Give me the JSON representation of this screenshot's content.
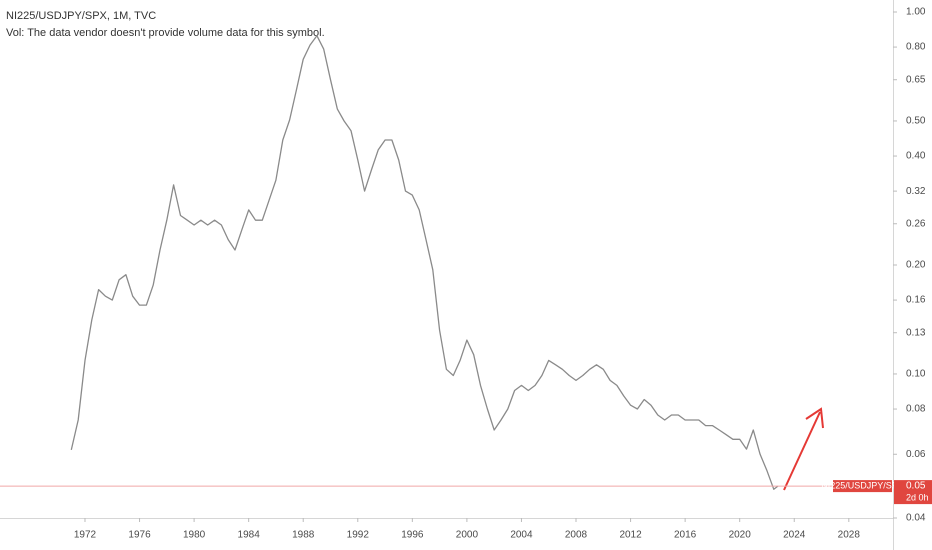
{
  "chart_data": {
    "type": "line",
    "title": "NI225/USDJPY/SPX, 1M, TVC",
    "subtitle": "Vol: The data vendor doesn't provide volume data for this symbol.",
    "log_scale": true,
    "grid": false,
    "x": [
      1971.0,
      1971.5,
      1972.0,
      1972.5,
      1973.0,
      1973.5,
      1974.0,
      1974.5,
      1975.0,
      1975.5,
      1976.0,
      1976.5,
      1977.0,
      1977.5,
      1978.0,
      1978.5,
      1979.0,
      1979.5,
      1980.0,
      1980.5,
      1981.0,
      1981.5,
      1982.0,
      1982.5,
      1983.0,
      1983.5,
      1984.0,
      1984.5,
      1985.0,
      1985.5,
      1986.0,
      1986.5,
      1987.0,
      1987.5,
      1988.0,
      1988.5,
      1989.0,
      1989.5,
      1990.0,
      1990.5,
      1991.0,
      1991.5,
      1992.0,
      1992.5,
      1993.0,
      1993.5,
      1994.0,
      1994.5,
      1995.0,
      1995.5,
      1996.0,
      1996.5,
      1997.0,
      1997.5,
      1998.0,
      1998.5,
      1999.0,
      1999.5,
      2000.0,
      2000.5,
      2001.0,
      2001.5,
      2002.0,
      2002.5,
      2003.0,
      2003.5,
      2004.0,
      2004.5,
      2005.0,
      2005.5,
      2006.0,
      2006.5,
      2007.0,
      2007.5,
      2008.0,
      2008.5,
      2009.0,
      2009.5,
      2010.0,
      2010.5,
      2011.0,
      2011.5,
      2012.0,
      2012.5,
      2013.0,
      2013.5,
      2014.0,
      2014.5,
      2015.0,
      2015.5,
      2016.0,
      2016.5,
      2017.0,
      2017.5,
      2018.0,
      2018.5,
      2019.0,
      2019.5,
      2020.0,
      2020.5,
      2021.0,
      2021.5,
      2022.0,
      2022.5,
      2022.8
    ],
    "series": [
      {
        "name": "NI225/USDJPY/SPX",
        "color": "#8a8a8a",
        "values": [
          0.0617,
          0.0746,
          0.109,
          0.141,
          0.171,
          0.164,
          0.16,
          0.182,
          0.188,
          0.164,
          0.155,
          0.155,
          0.176,
          0.22,
          0.266,
          0.333,
          0.274,
          0.266,
          0.258,
          0.266,
          0.258,
          0.266,
          0.258,
          0.235,
          0.22,
          0.25,
          0.284,
          0.266,
          0.266,
          0.302,
          0.343,
          0.443,
          0.503,
          0.609,
          0.74,
          0.81,
          0.86,
          0.79,
          0.65,
          0.54,
          0.5,
          0.47,
          0.39,
          0.32,
          0.366,
          0.416,
          0.443,
          0.443,
          0.39,
          0.32,
          0.312,
          0.284,
          0.235,
          0.194,
          0.132,
          0.103,
          0.099,
          0.109,
          0.124,
          0.113,
          0.093,
          0.08,
          0.07,
          0.0746,
          0.08,
          0.09,
          0.093,
          0.09,
          0.093,
          0.099,
          0.109,
          0.106,
          0.103,
          0.099,
          0.096,
          0.099,
          0.103,
          0.106,
          0.103,
          0.096,
          0.093,
          0.087,
          0.082,
          0.08,
          0.085,
          0.082,
          0.077,
          0.0746,
          0.077,
          0.077,
          0.0746,
          0.0746,
          0.0746,
          0.072,
          0.072,
          0.07,
          0.068,
          0.066,
          0.066,
          0.062,
          0.07,
          0.06,
          0.054,
          0.048,
          0.049
        ]
      }
    ],
    "last_price": {
      "value": 0.049,
      "label": "0.05"
    },
    "countdown": "2d 0h",
    "xlim": [
      1965.77,
      2031.24
    ],
    "xticks": [
      1972,
      1976,
      1980,
      1984,
      1988,
      1992,
      1996,
      2000,
      2004,
      2008,
      2012,
      2016,
      2020,
      2024,
      2028
    ],
    "ylim": [
      0.04,
      1
    ],
    "yticks": [
      {
        "value": 0.04,
        "label": "0.04"
      },
      0.06,
      0.08,
      {
        "value": 0.1,
        "label": "0.10"
      },
      0.13,
      0.16,
      {
        "value": 0.2,
        "label": "0.20"
      },
      0.26,
      0.32,
      {
        "value": 0.4,
        "label": "0.40"
      },
      {
        "value": 0.5,
        "label": "0.50"
      },
      0.65,
      {
        "value": 0.8,
        "label": "0.80"
      },
      {
        "value": 1,
        "label": "1.00"
      }
    ]
  }
}
